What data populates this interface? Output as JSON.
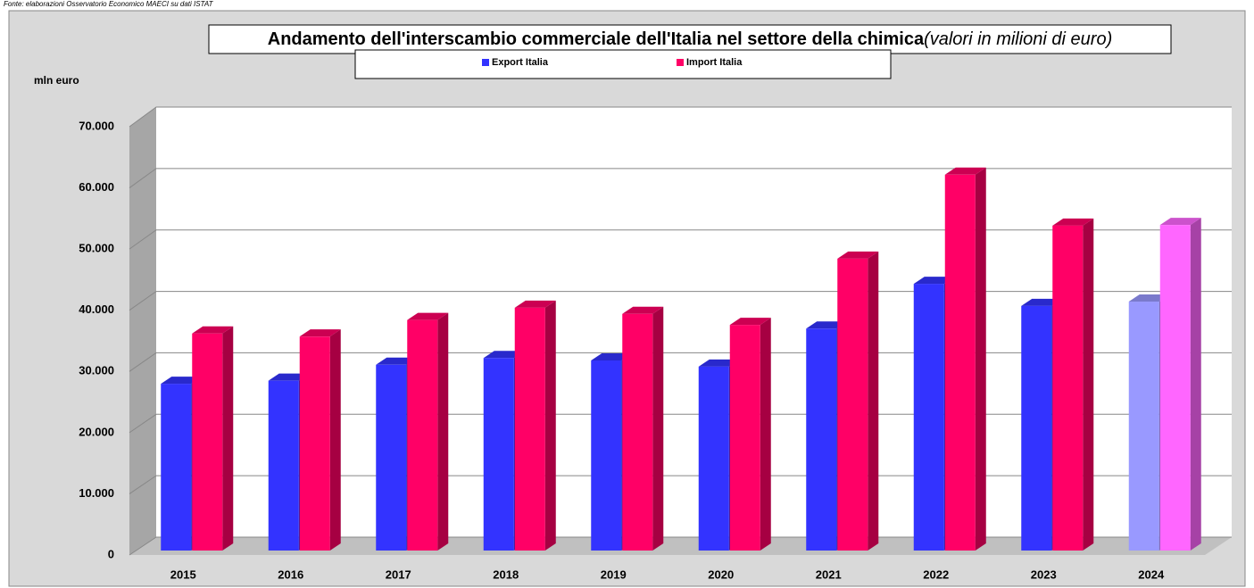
{
  "chart_data": {
    "type": "bar3d",
    "source": "Fonte: elaborazioni Osservatorio Economico MAECI su dati ISTAT",
    "title": "Andamento dell'interscambio commerciale dell'Italia nel settore della chimica",
    "subtitle": "(valori in milioni di euro)",
    "y_label": "mln euro",
    "categories": [
      "2015",
      "2016",
      "2017",
      "2018",
      "2019",
      "2020",
      "2021",
      "2022",
      "2023",
      "2024"
    ],
    "series": [
      {
        "name": "Export Italia",
        "color": "#3333ff",
        "colors": [
          "#3333ff",
          "#3333ff",
          "#3333ff",
          "#3333ff",
          "#3333ff",
          "#3333ff",
          "#3333ff",
          "#3333ff",
          "#3333ff",
          "#9999ff"
        ],
        "values": [
          27200,
          27700,
          30300,
          31400,
          31000,
          30000,
          36200,
          43500,
          39900,
          40600
        ]
      },
      {
        "name": "Import Italia",
        "color": "#ff0066",
        "colors": [
          "#ff0066",
          "#ff0066",
          "#ff0066",
          "#ff0066",
          "#ff0066",
          "#ff0066",
          "#ff0066",
          "#ff0066",
          "#ff0066",
          "#ff66ff"
        ],
        "values": [
          35400,
          34900,
          37600,
          39600,
          38600,
          36800,
          47600,
          61300,
          53000,
          53100
        ]
      }
    ],
    "ylim": [
      0,
      70000
    ],
    "yticks": [
      0,
      {
        "value": 10000,
        "label": "10.000"
      },
      {
        "value": 20000,
        "label": "20.000"
      },
      {
        "value": 30000,
        "label": "30.000"
      },
      {
        "value": 40000,
        "label": "40.000"
      },
      {
        "value": 50000,
        "label": "50.000"
      },
      {
        "value": 60000,
        "label": "60.000"
      },
      {
        "value": 70000,
        "label": "70.000"
      }
    ],
    "grid": true,
    "legend": "top"
  }
}
